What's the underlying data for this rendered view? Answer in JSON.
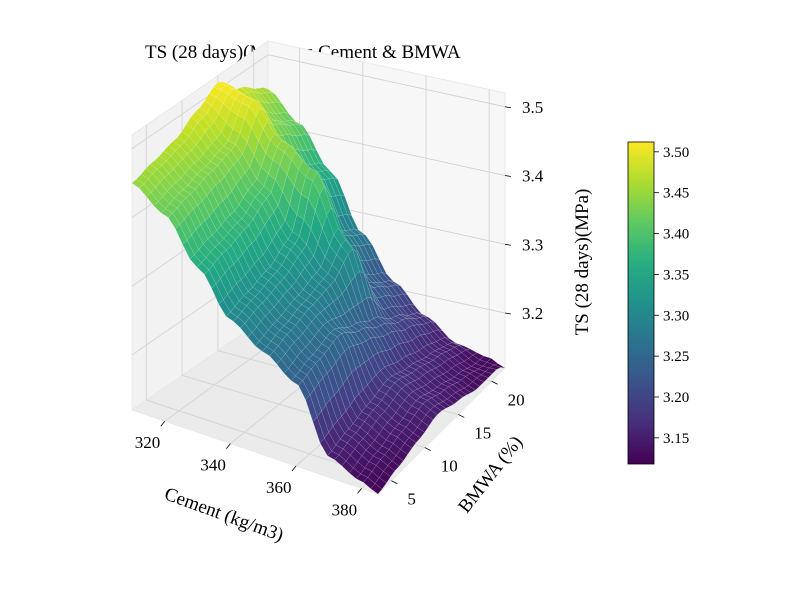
{
  "chart_data": {
    "type": "surface3d",
    "title": "TS (28 days)(MPa) vs Cement & BMWA",
    "xlabel": "Cement (kg/m3)",
    "ylabel": "BMWA (%)",
    "zlabel": "TS (28 days)(MPa)",
    "colormap": "viridis",
    "xlim": [
      310,
      385
    ],
    "ylim": [
      3,
      22
    ],
    "zlim": [
      3.12,
      3.52
    ],
    "x_ticks": [
      "320",
      "340",
      "360",
      "380"
    ],
    "y_ticks": [
      "5",
      "10",
      "15",
      "20"
    ],
    "z_ticks": [
      "3.2",
      "3.3",
      "3.4",
      "3.5"
    ],
    "colorbar": {
      "range": [
        3.118,
        3.512
      ],
      "ticks": [
        "3.15",
        "3.20",
        "3.25",
        "3.30",
        "3.35",
        "3.40",
        "3.45",
        "3.50"
      ]
    },
    "surface": {
      "cement": [
        310,
        320,
        330,
        340,
        350,
        360,
        370,
        380,
        385
      ],
      "bmwa": [
        3,
        6,
        9,
        12,
        15,
        18,
        21,
        22
      ],
      "ts": [
        [
          3.45,
          3.46,
          3.47,
          3.49,
          3.51,
          3.48,
          3.46,
          3.45
        ],
        [
          3.42,
          3.43,
          3.44,
          3.45,
          3.5,
          3.44,
          3.42,
          3.41
        ],
        [
          3.36,
          3.37,
          3.38,
          3.4,
          3.45,
          3.38,
          3.36,
          3.35
        ],
        [
          3.3,
          3.31,
          3.32,
          3.34,
          3.42,
          3.3,
          3.28,
          3.27
        ],
        [
          3.27,
          3.28,
          3.29,
          3.3,
          3.33,
          3.24,
          3.22,
          3.21
        ],
        [
          3.24,
          3.25,
          3.26,
          3.24,
          3.22,
          3.2,
          3.18,
          3.17
        ],
        [
          3.15,
          3.16,
          3.17,
          3.18,
          3.17,
          3.16,
          3.15,
          3.14
        ],
        [
          3.13,
          3.14,
          3.15,
          3.16,
          3.15,
          3.14,
          3.13,
          3.13
        ],
        [
          3.12,
          3.13,
          3.14,
          3.15,
          3.14,
          3.13,
          3.13,
          3.12
        ]
      ]
    }
  }
}
